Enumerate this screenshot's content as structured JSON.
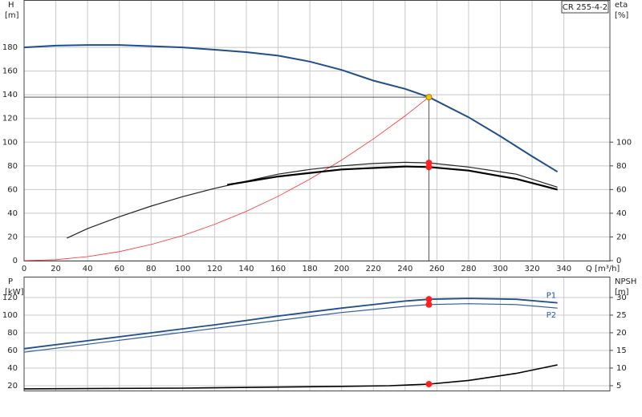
{
  "chart_data": [
    {
      "type": "line",
      "model": "CR 255-4-2",
      "y_label": "H",
      "y_unit": "[m]",
      "y2_label": "eta",
      "y2_unit": "[%]",
      "x_label": "Q [m³/h]",
      "xlim": [
        0,
        369
      ],
      "xticks": [
        0,
        20,
        40,
        60,
        80,
        100,
        120,
        140,
        160,
        180,
        200,
        220,
        240,
        260,
        280,
        300,
        320,
        340
      ],
      "ylim": [
        0,
        220
      ],
      "yticks": [
        0,
        20,
        40,
        60,
        80,
        100,
        120,
        140,
        160,
        180
      ],
      "y2lim": [
        0,
        220
      ],
      "y2ticks": [
        0,
        20,
        40,
        60,
        80,
        100
      ],
      "grid": true,
      "series": [
        {
          "color": "#1f4e8c",
          "width": 2,
          "x": [
            0,
            20,
            40,
            60,
            80,
            100,
            120,
            140,
            160,
            180,
            200,
            220,
            240,
            255,
            280,
            300,
            320,
            336
          ],
          "values": [
            180,
            181.5,
            182,
            182,
            181,
            180,
            178,
            176,
            173,
            168,
            161,
            152,
            145,
            138,
            121,
            105,
            88,
            75
          ]
        },
        {
          "color": "#ff3030",
          "width": 0.8,
          "x": [
            0,
            20,
            40,
            60,
            80,
            100,
            120,
            140,
            160,
            180,
            200,
            220,
            240,
            255
          ],
          "values": [
            0,
            0.8,
            3.4,
            7.6,
            13.6,
            21.2,
            30.6,
            41.6,
            54.3,
            68.8,
            84.9,
            102.7,
            122.2,
            138
          ]
        },
        {
          "color": "#222222",
          "width": 1.2,
          "axis": "y2",
          "x": [
            27,
            40,
            60,
            80,
            100,
            120,
            140,
            160,
            180,
            200,
            220,
            240,
            255,
            280,
            310,
            336
          ],
          "values": [
            19,
            27,
            37,
            46,
            54,
            61,
            67,
            73,
            77,
            80,
            82,
            83,
            82.5,
            79,
            73,
            62
          ]
        },
        {
          "color": "#000000",
          "width": 2.2,
          "axis": "y2",
          "x": [
            128,
            160,
            200,
            240,
            255,
            280,
            310,
            336
          ],
          "values": [
            64,
            71,
            77,
            79.5,
            79,
            76,
            69,
            60
          ]
        }
      ],
      "markers": [
        {
          "x": 255,
          "y": 138,
          "color": "#f5c400",
          "guides": true
        },
        {
          "x": 255,
          "y": 82.5,
          "color": "#ff2020",
          "axis": "y2"
        },
        {
          "x": 255,
          "y": 79,
          "color": "#ff2020",
          "axis": "y2"
        }
      ]
    },
    {
      "type": "line",
      "y_label": "P",
      "y_unit": "[kW]",
      "y2_label": "NPSH",
      "y2_unit": "[m]",
      "xlim": [
        0,
        369
      ],
      "ylim": [
        14.5,
        143.6
      ],
      "yticks": [
        20,
        40,
        60,
        80,
        100,
        120
      ],
      "y2lim": [
        3.625,
        35.9
      ],
      "y2ticks": [
        5,
        10,
        15,
        20,
        25,
        30
      ],
      "grid": true,
      "series": [
        {
          "name": "P1",
          "color": "#1f4e8c",
          "width": 1.8,
          "x": [
            0,
            40,
            80,
            120,
            160,
            200,
            240,
            255,
            280,
            310,
            336
          ],
          "values": [
            62,
            71,
            80,
            89,
            99,
            108,
            116,
            118,
            119,
            118,
            114
          ]
        },
        {
          "name": "P2",
          "color": "#2a5c9c",
          "width": 1.2,
          "x": [
            0,
            40,
            80,
            120,
            160,
            200,
            240,
            255,
            280,
            310,
            336
          ],
          "values": [
            58,
            67,
            76,
            85,
            94,
            103,
            110,
            112,
            113,
            112,
            108
          ]
        },
        {
          "color": "#000000",
          "width": 1.6,
          "axis": "y2",
          "x": [
            0,
            100,
            160,
            200,
            230,
            255,
            280,
            310,
            336
          ],
          "values": [
            4.1,
            4.3,
            4.6,
            4.8,
            5,
            5.45,
            6.5,
            8.5,
            10.9
          ]
        }
      ],
      "markers": [
        {
          "x": 255,
          "y": 118,
          "color": "#ff2020"
        },
        {
          "x": 255,
          "y": 112,
          "color": "#ff2020"
        },
        {
          "x": 255,
          "y": 5.45,
          "color": "#ff2020",
          "axis": "y2"
        }
      ]
    }
  ]
}
